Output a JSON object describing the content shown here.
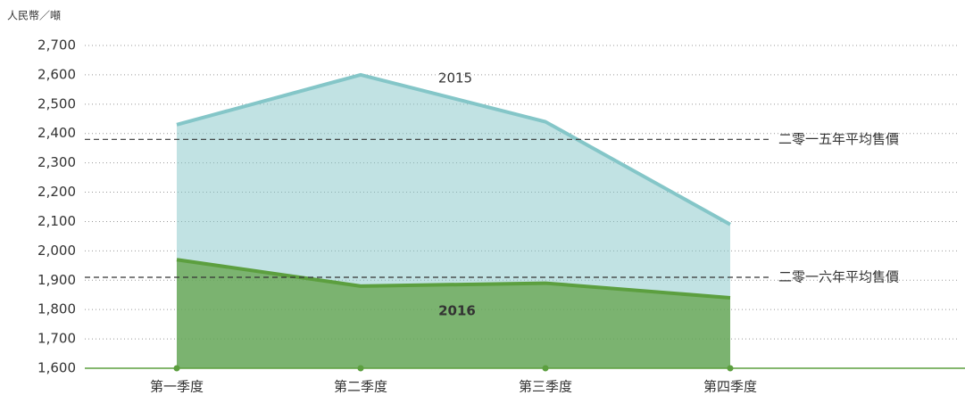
{
  "chart_data": {
    "type": "area",
    "y_label": "人民幣／噸",
    "categories": [
      "第一季度",
      "第二季度",
      "第三季度",
      "第四季度"
    ],
    "series": [
      {
        "name": "2015",
        "color": "#84c6c8",
        "values": [
          2430,
          2600,
          2440,
          2090
        ]
      },
      {
        "name": "2016",
        "color": "#5c9f3f",
        "values": [
          1970,
          1880,
          1890,
          1840
        ]
      }
    ],
    "reference_lines": [
      {
        "value": 2380,
        "label": "二零一五年平均售價"
      },
      {
        "value": 1910,
        "label": "二零一六年平均售價"
      }
    ],
    "ylim": [
      1600,
      2700
    ],
    "yticks": [
      {
        "value": 1600,
        "label": "1,600"
      },
      {
        "value": 1700,
        "label": "1,700"
      },
      {
        "value": 1800,
        "label": "1,800"
      },
      {
        "value": 1900,
        "label": "1,900"
      },
      {
        "value": 2000,
        "label": "2,000"
      },
      {
        "value": 2100,
        "label": "2,100"
      },
      {
        "value": 2200,
        "label": "2,200"
      },
      {
        "value": 2300,
        "label": "2,300"
      },
      {
        "value": 2400,
        "label": "2,400"
      },
      {
        "value": 2500,
        "label": "2,500"
      },
      {
        "value": 2600,
        "label": "2,600"
      },
      {
        "value": 2700,
        "label": "2,700"
      }
    ],
    "grid": true
  }
}
